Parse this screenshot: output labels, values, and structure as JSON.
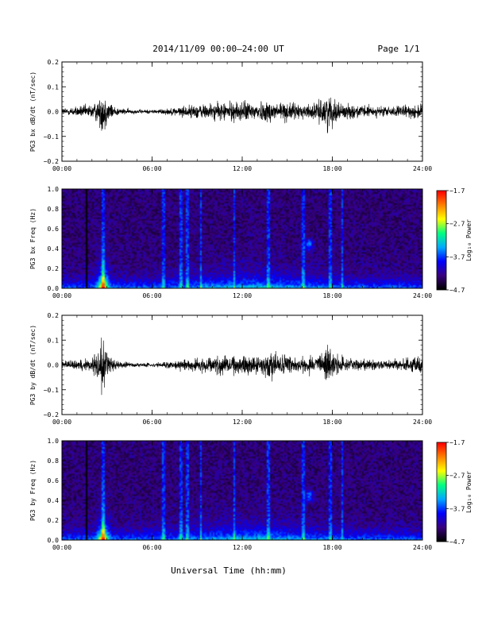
{
  "header": {
    "title": "2014/11/09  00:00–24:00 UT",
    "page": "Page 1/1"
  },
  "xlabel": "Universal Time (hh:mm)",
  "colorbar_label": "Log₁₀ Power",
  "chart_data": [
    {
      "type": "line",
      "ylabel": "PG3 bx dB/dt (nT/sec)",
      "ylim": [
        -0.2,
        0.2
      ],
      "yticks": [
        -0.2,
        -0.1,
        0.0,
        0.1,
        0.2
      ],
      "ytick_labels": [
        "−0.2",
        "−0.1",
        "0.0",
        "0.1",
        "0.2"
      ],
      "xlim": [
        "00:00",
        "24:00"
      ],
      "xticks": [
        "00:00",
        "06:00",
        "12:00",
        "18:00",
        "24:00"
      ],
      "color": "#000000",
      "x_hours": [
        0,
        0.5,
        1,
        1.5,
        2,
        2.5,
        2.7,
        2.9,
        3.1,
        3.5,
        4,
        5,
        6,
        7,
        8,
        9,
        10,
        11,
        12,
        13,
        14,
        15,
        16,
        17,
        17.7,
        18.2,
        19,
        20,
        21,
        22,
        23,
        24
      ],
      "envelope": [
        0.02,
        0.02,
        0.025,
        0.03,
        0.035,
        0.06,
        0.12,
        0.09,
        0.05,
        0.025,
        0.015,
        0.01,
        0.01,
        0.015,
        0.025,
        0.035,
        0.04,
        0.045,
        0.05,
        0.045,
        0.055,
        0.045,
        0.035,
        0.04,
        0.09,
        0.05,
        0.035,
        0.03,
        0.025,
        0.025,
        0.03,
        0.04
      ]
    },
    {
      "type": "heatmap",
      "ylabel": "PG3 bx Freq (Hz)",
      "ylim": [
        0.0,
        1.0
      ],
      "yticks": [
        0.0,
        0.2,
        0.4,
        0.6,
        0.8,
        1.0
      ],
      "ytick_labels": [
        "0.0",
        "0.2",
        "0.4",
        "0.6",
        "0.8",
        "1.0"
      ],
      "xlim": [
        "00:00",
        "24:00"
      ],
      "xticks": [
        "00:00",
        "06:00",
        "12:00",
        "18:00",
        "24:00"
      ],
      "colorbar": {
        "min": -4.7,
        "max": -1.7,
        "ticks": [
          -4.7,
          -3.7,
          -2.7,
          -1.7
        ],
        "tick_labels": [
          "−4.7",
          "−3.7",
          "−2.7",
          "−1.7"
        ],
        "colors": [
          "#000000",
          "#3a0080",
          "#0000ff",
          "#00aaff",
          "#00ff80",
          "#ffff00",
          "#ff8000",
          "#ff0000"
        ]
      },
      "data_gaps_hours": [
        1.6
      ],
      "vertical_streaks_hours": [
        2.7,
        6.7,
        7.9,
        8.3,
        9.2,
        11.4,
        13.7,
        16.0,
        17.8,
        18.6
      ],
      "patches": [
        {
          "hour": 16.4,
          "freq": 0.45
        }
      ],
      "peak": {
        "hour": 2.7,
        "freq": 0.02
      }
    },
    {
      "type": "line",
      "ylabel": "PG3 by dB/dt (nT/sec)",
      "ylim": [
        -0.2,
        0.2
      ],
      "yticks": [
        -0.2,
        -0.1,
        0.0,
        0.1,
        0.2
      ],
      "ytick_labels": [
        "−0.2",
        "−0.1",
        "0.0",
        "0.1",
        "0.2"
      ],
      "xlim": [
        "00:00",
        "24:00"
      ],
      "xticks": [
        "00:00",
        "06:00",
        "12:00",
        "18:00",
        "24:00"
      ],
      "color": "#000000",
      "x_hours": [
        0,
        0.5,
        1,
        1.5,
        2,
        2.5,
        2.7,
        2.9,
        3.1,
        3.5,
        4,
        5,
        6,
        7,
        8,
        9,
        10,
        11,
        12,
        13,
        14,
        15,
        16,
        17,
        17.7,
        18.2,
        19,
        20,
        21,
        22,
        23,
        24
      ],
      "envelope": [
        0.02,
        0.02,
        0.025,
        0.03,
        0.035,
        0.08,
        0.16,
        0.1,
        0.05,
        0.025,
        0.015,
        0.01,
        0.01,
        0.015,
        0.025,
        0.035,
        0.04,
        0.045,
        0.05,
        0.045,
        0.06,
        0.045,
        0.035,
        0.04,
        0.1,
        0.05,
        0.035,
        0.03,
        0.025,
        0.025,
        0.03,
        0.04
      ]
    },
    {
      "type": "heatmap",
      "ylabel": "PG3 by Freq (Hz)",
      "ylim": [
        0.0,
        1.0
      ],
      "yticks": [
        0.0,
        0.2,
        0.4,
        0.6,
        0.8,
        1.0
      ],
      "ytick_labels": [
        "0.0",
        "0.2",
        "0.4",
        "0.6",
        "0.8",
        "1.0"
      ],
      "xlim": [
        "00:00",
        "24:00"
      ],
      "xticks": [
        "00:00",
        "06:00",
        "12:00",
        "18:00",
        "24:00"
      ],
      "colorbar": {
        "min": -4.7,
        "max": -1.7,
        "ticks": [
          -4.7,
          -3.7,
          -2.7,
          -1.7
        ],
        "tick_labels": [
          "−4.7",
          "−3.7",
          "−2.7",
          "−1.7"
        ],
        "colors": [
          "#000000",
          "#3a0080",
          "#0000ff",
          "#00aaff",
          "#00ff80",
          "#ffff00",
          "#ff8000",
          "#ff0000"
        ]
      },
      "data_gaps_hours": [
        1.6
      ],
      "vertical_streaks_hours": [
        2.7,
        6.7,
        7.9,
        8.3,
        9.2,
        11.4,
        13.7,
        16.0,
        17.8,
        18.6
      ],
      "patches": [
        {
          "hour": 16.4,
          "freq": 0.45
        }
      ],
      "peak": {
        "hour": 2.7,
        "freq": 0.02
      }
    }
  ]
}
